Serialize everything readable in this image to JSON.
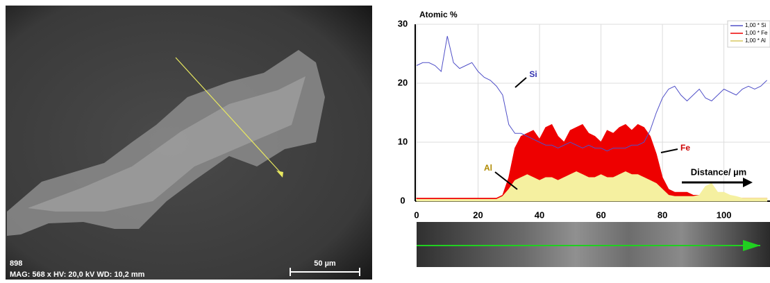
{
  "image": {
    "label": "898",
    "info": "MAG: 568 x  HV: 20,0 kV  WD: 10,2 mm",
    "scale": "50 µm"
  },
  "chart_data": {
    "type": "line",
    "title": "Atomic %",
    "xlabel": "Distance/ µm",
    "annotations": [
      "Si",
      "Fe",
      "Al"
    ],
    "x": [
      0,
      2,
      4,
      6,
      8,
      10,
      12,
      14,
      16,
      18,
      20,
      22,
      24,
      26,
      28,
      30,
      32,
      34,
      36,
      38,
      40,
      42,
      44,
      46,
      48,
      50,
      52,
      54,
      56,
      58,
      60,
      62,
      64,
      66,
      68,
      70,
      72,
      74,
      76,
      78,
      80,
      82,
      84,
      86,
      88,
      90,
      92,
      94,
      96,
      98,
      100,
      102,
      104,
      106,
      108,
      110,
      112,
      114
    ],
    "series": [
      {
        "name": "1,00 * Si",
        "color": "#5050c8",
        "style": "line",
        "values": [
          23,
          23.5,
          23.5,
          23,
          22,
          28,
          23.5,
          22.5,
          23,
          23.5,
          22,
          21,
          20.5,
          19.5,
          18,
          13,
          11.5,
          11.5,
          11,
          10.5,
          10,
          9.5,
          9.5,
          9,
          9.5,
          10,
          9.5,
          9,
          9.5,
          9,
          9,
          8.5,
          9,
          9,
          9,
          9.5,
          9.5,
          10,
          12,
          15,
          17.5,
          19,
          19.5,
          18,
          17,
          18,
          19,
          17.5,
          17,
          18,
          19,
          18.5,
          18,
          19,
          19.5,
          19,
          19.5,
          20.5
        ]
      },
      {
        "name": "1,00 * Fe",
        "color": "#ee0000",
        "style": "area",
        "values": [
          0.5,
          0.5,
          0.5,
          0.5,
          0.5,
          0.5,
          0.5,
          0.5,
          0.5,
          0.5,
          0.5,
          0.5,
          0.5,
          0.5,
          1,
          4,
          9,
          11,
          11.5,
          12,
          10.5,
          12.5,
          13,
          11,
          10,
          12,
          12.5,
          13,
          11.5,
          11,
          10,
          12,
          11.5,
          12.5,
          13,
          12,
          13,
          12.5,
          11,
          8,
          4,
          2,
          1.5,
          1.5,
          1.5,
          1,
          1,
          1,
          1,
          1,
          1,
          0.5,
          0.5,
          0.5,
          0.5,
          0.5,
          0.5,
          0.5
        ]
      },
      {
        "name": "1,00 * Al",
        "color": "#f5f0a0",
        "style": "area",
        "values": [
          0.3,
          0.3,
          0.3,
          0.3,
          0.3,
          0.3,
          0.3,
          0.3,
          0.3,
          0.3,
          0.3,
          0.3,
          0.3,
          0.3,
          0.8,
          2,
          3.5,
          4,
          4.5,
          4,
          3.5,
          4,
          4,
          3.5,
          4,
          4.5,
          5,
          4.5,
          4,
          4,
          4.5,
          4,
          4,
          4.5,
          5,
          4.5,
          4.5,
          4,
          3.5,
          3,
          2,
          1,
          0.8,
          0.8,
          0.8,
          0.8,
          1,
          2.5,
          3,
          1.5,
          1.5,
          1,
          0.8,
          0.5,
          0.5,
          0.5,
          0.5,
          0.5
        ]
      }
    ],
    "xlim": [
      0,
      115
    ],
    "xticks": [
      0,
      20,
      40,
      60,
      80,
      100
    ],
    "ylim": [
      0,
      30
    ],
    "yticks": [
      0,
      10,
      20,
      30
    ],
    "grid": true
  }
}
